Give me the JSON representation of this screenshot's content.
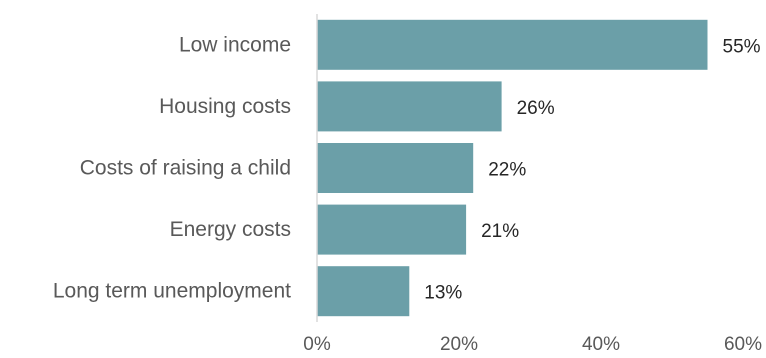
{
  "chart_data": {
    "type": "bar",
    "orientation": "horizontal",
    "categories": [
      "Low income",
      "Housing costs",
      "Costs of raising a child",
      "Energy costs",
      "Long term unemployment"
    ],
    "values": [
      55,
      26,
      22,
      21,
      13
    ],
    "data_labels": [
      "55%",
      "26%",
      "22%",
      "21%",
      "13%"
    ],
    "x_ticks": [
      0,
      20,
      40,
      60
    ],
    "x_tick_labels": [
      "0%",
      "20%",
      "40%",
      "60%"
    ],
    "xlim": [
      0,
      60
    ],
    "grid": false,
    "legend": "none",
    "bar_color": "#6b9fa8",
    "axis_color": "#d9d9d9"
  }
}
